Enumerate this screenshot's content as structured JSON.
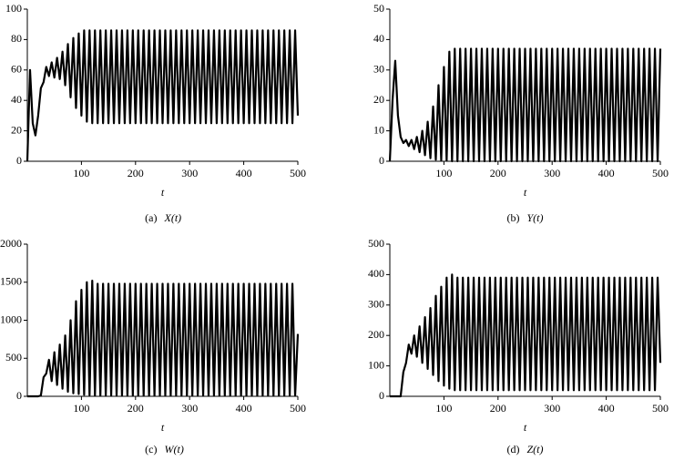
{
  "chart_data": [
    {
      "type": "line",
      "xlabel": "t",
      "caption": "(a)",
      "func": "X(t)",
      "color": "#000000",
      "xlim": [
        0,
        500
      ],
      "xticks": [
        100,
        200,
        300,
        400,
        500
      ],
      "ylim": [
        0,
        100
      ],
      "yticks": [
        0,
        20,
        40,
        60,
        80,
        100
      ],
      "x": [
        0,
        5,
        10,
        15,
        20,
        25,
        30,
        35,
        40,
        45,
        50,
        55,
        60,
        65,
        70,
        75,
        80,
        85,
        90,
        95,
        100,
        105,
        110,
        115,
        120,
        125,
        130,
        135,
        140,
        145,
        150,
        155,
        160,
        165,
        170,
        175,
        180,
        185,
        190,
        195,
        200,
        205,
        210,
        215,
        220,
        225,
        230,
        235,
        240,
        245,
        250,
        255,
        260,
        265,
        270,
        275,
        280,
        285,
        290,
        295,
        300,
        305,
        310,
        315,
        320,
        325,
        330,
        335,
        340,
        345,
        350,
        355,
        360,
        365,
        370,
        375,
        380,
        385,
        390,
        395,
        400,
        405,
        410,
        415,
        420,
        425,
        430,
        435,
        440,
        445,
        450,
        455,
        460,
        465,
        470,
        475,
        480,
        485,
        490,
        495,
        500
      ],
      "values": [
        0,
        60,
        25,
        17,
        30,
        48,
        52,
        62,
        56,
        65,
        55,
        68,
        54,
        72,
        50,
        77,
        42,
        81,
        35,
        84,
        30,
        86,
        26,
        86,
        25,
        86,
        25,
        86,
        25,
        86,
        25,
        86,
        25,
        86,
        25,
        86,
        25,
        86,
        25,
        86,
        25,
        86,
        25,
        86,
        25,
        86,
        25,
        86,
        25,
        86,
        25,
        86,
        25,
        86,
        25,
        86,
        25,
        86,
        25,
        86,
        25,
        86,
        25,
        86,
        25,
        86,
        25,
        86,
        25,
        86,
        25,
        86,
        25,
        86,
        25,
        86,
        25,
        86,
        25,
        86,
        25,
        86,
        25,
        86,
        25,
        86,
        25,
        86,
        25,
        86,
        25,
        86,
        25,
        86,
        25,
        86,
        25,
        86,
        25,
        86,
        30
      ]
    },
    {
      "type": "line",
      "xlabel": "t",
      "caption": "(b)",
      "func": "Y(t)",
      "color": "#000000",
      "xlim": [
        0,
        500
      ],
      "xticks": [
        100,
        200,
        300,
        400,
        500
      ],
      "ylim": [
        0,
        50
      ],
      "yticks": [
        0,
        10,
        20,
        30,
        40,
        50
      ],
      "x": [
        0,
        5,
        10,
        15,
        20,
        25,
        30,
        35,
        40,
        45,
        50,
        55,
        60,
        65,
        70,
        75,
        80,
        85,
        90,
        95,
        100,
        105,
        110,
        115,
        120,
        125,
        130,
        135,
        140,
        145,
        150,
        155,
        160,
        165,
        170,
        175,
        180,
        185,
        190,
        195,
        200,
        205,
        210,
        215,
        220,
        225,
        230,
        235,
        240,
        245,
        250,
        255,
        260,
        265,
        270,
        275,
        280,
        285,
        290,
        295,
        300,
        305,
        310,
        315,
        320,
        325,
        330,
        335,
        340,
        345,
        350,
        355,
        360,
        365,
        370,
        375,
        380,
        385,
        390,
        395,
        400,
        405,
        410,
        415,
        420,
        425,
        430,
        435,
        440,
        445,
        450,
        455,
        460,
        465,
        470,
        475,
        480,
        485,
        490,
        495,
        500
      ],
      "values": [
        0,
        20,
        33,
        15,
        8,
        6,
        7,
        5,
        7,
        4,
        8,
        3,
        10,
        2,
        13,
        1,
        18,
        0.5,
        25,
        0.3,
        31,
        0.2,
        36,
        0,
        37,
        0,
        37,
        0,
        37,
        0,
        37,
        0,
        37,
        0,
        37,
        0,
        37,
        0,
        37,
        0,
        37,
        0,
        37,
        0,
        37,
        0,
        37,
        0,
        37,
        0,
        37,
        0,
        37,
        0,
        37,
        0,
        37,
        0,
        37,
        0,
        37,
        0,
        37,
        0,
        37,
        0,
        37,
        0,
        37,
        0,
        37,
        0,
        37,
        0,
        37,
        0,
        37,
        0,
        37,
        0,
        37,
        0,
        37,
        0,
        37,
        0,
        37,
        0,
        37,
        0,
        37,
        0,
        37,
        0,
        37,
        0,
        37,
        0,
        37,
        0,
        37
      ]
    },
    {
      "type": "line",
      "xlabel": "t",
      "caption": "(c)",
      "func": "W(t)",
      "color": "#000000",
      "xlim": [
        0,
        500
      ],
      "xticks": [
        100,
        200,
        300,
        400,
        500
      ],
      "ylim": [
        0,
        2000
      ],
      "yticks": [
        0,
        500,
        1000,
        1500,
        2000
      ],
      "x": [
        0,
        5,
        10,
        15,
        20,
        25,
        30,
        35,
        40,
        45,
        50,
        55,
        60,
        65,
        70,
        75,
        80,
        85,
        90,
        95,
        100,
        105,
        110,
        115,
        120,
        125,
        130,
        135,
        140,
        145,
        150,
        155,
        160,
        165,
        170,
        175,
        180,
        185,
        190,
        195,
        200,
        205,
        210,
        215,
        220,
        225,
        230,
        235,
        240,
        245,
        250,
        255,
        260,
        265,
        270,
        275,
        280,
        285,
        290,
        295,
        300,
        305,
        310,
        315,
        320,
        325,
        330,
        335,
        340,
        345,
        350,
        355,
        360,
        365,
        370,
        375,
        380,
        385,
        390,
        395,
        400,
        405,
        410,
        415,
        420,
        425,
        430,
        435,
        440,
        445,
        450,
        455,
        460,
        465,
        470,
        475,
        480,
        485,
        490,
        495,
        500
      ],
      "values": [
        0,
        0,
        0,
        0,
        0,
        10,
        250,
        300,
        480,
        200,
        580,
        150,
        680,
        100,
        800,
        60,
        1000,
        40,
        1250,
        30,
        1400,
        20,
        1500,
        15,
        1520,
        10,
        1480,
        10,
        1480,
        10,
        1480,
        10,
        1480,
        10,
        1480,
        10,
        1480,
        10,
        1480,
        10,
        1480,
        10,
        1480,
        10,
        1480,
        10,
        1480,
        10,
        1480,
        10,
        1480,
        10,
        1480,
        10,
        1480,
        10,
        1480,
        10,
        1480,
        10,
        1480,
        10,
        1480,
        10,
        1480,
        10,
        1480,
        10,
        1480,
        10,
        1480,
        10,
        1480,
        10,
        1480,
        10,
        1480,
        10,
        1480,
        10,
        1480,
        10,
        1480,
        10,
        1480,
        10,
        1480,
        10,
        1480,
        10,
        1480,
        10,
        1480,
        10,
        1480,
        10,
        1480,
        10,
        1480,
        10,
        820
      ]
    },
    {
      "type": "line",
      "xlabel": "t",
      "caption": "(d)",
      "func": "Z(t)",
      "color": "#000000",
      "xlim": [
        0,
        500
      ],
      "xticks": [
        100,
        200,
        300,
        400,
        500
      ],
      "ylim": [
        0,
        500
      ],
      "yticks": [
        0,
        100,
        200,
        300,
        400,
        500
      ],
      "x": [
        0,
        5,
        10,
        15,
        20,
        25,
        30,
        35,
        40,
        45,
        50,
        55,
        60,
        65,
        70,
        75,
        80,
        85,
        90,
        95,
        100,
        105,
        110,
        115,
        120,
        125,
        130,
        135,
        140,
        145,
        150,
        155,
        160,
        165,
        170,
        175,
        180,
        185,
        190,
        195,
        200,
        205,
        210,
        215,
        220,
        225,
        230,
        235,
        240,
        245,
        250,
        255,
        260,
        265,
        270,
        275,
        280,
        285,
        290,
        295,
        300,
        305,
        310,
        315,
        320,
        325,
        330,
        335,
        340,
        345,
        350,
        355,
        360,
        365,
        370,
        375,
        380,
        385,
        390,
        395,
        400,
        405,
        410,
        415,
        420,
        425,
        430,
        435,
        440,
        445,
        450,
        455,
        460,
        465,
        470,
        475,
        480,
        485,
        490,
        495,
        500
      ],
      "values": [
        0,
        0,
        0,
        0,
        0,
        80,
        110,
        170,
        140,
        200,
        130,
        230,
        110,
        260,
        90,
        290,
        70,
        330,
        50,
        360,
        35,
        390,
        25,
        400,
        20,
        390,
        20,
        390,
        20,
        390,
        20,
        390,
        20,
        390,
        20,
        390,
        20,
        390,
        20,
        390,
        20,
        390,
        20,
        390,
        20,
        390,
        20,
        390,
        20,
        390,
        20,
        390,
        20,
        390,
        20,
        390,
        20,
        390,
        20,
        390,
        20,
        390,
        20,
        390,
        20,
        390,
        20,
        390,
        20,
        390,
        20,
        390,
        20,
        390,
        20,
        390,
        20,
        390,
        20,
        390,
        20,
        390,
        20,
        390,
        20,
        390,
        20,
        390,
        20,
        390,
        20,
        390,
        20,
        390,
        20,
        390,
        20,
        390,
        20,
        390,
        110
      ]
    }
  ]
}
